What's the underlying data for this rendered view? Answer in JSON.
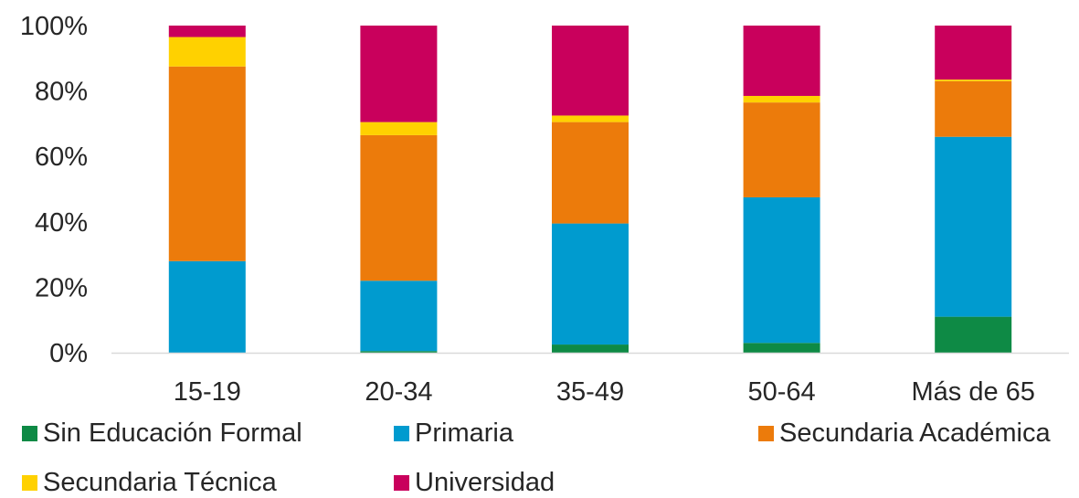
{
  "chart_data": {
    "type": "bar",
    "stacked": true,
    "percent": true,
    "categories": [
      "15-19",
      "20-34",
      "35-49",
      "50-64",
      "Más de 65"
    ],
    "y_ticks": [
      "0%",
      "20%",
      "40%",
      "60%",
      "80%",
      "100%"
    ],
    "ylim": [
      0,
      100
    ],
    "grid": false,
    "legend_position": "bottom",
    "series": [
      {
        "name": "Sin Educación Formal",
        "color": "#0E8A45",
        "values": [
          0,
          0.5,
          2.5,
          3,
          11
        ]
      },
      {
        "name": "Primaria",
        "color": "#009BCF",
        "values": [
          28,
          21.5,
          37,
          44.5,
          55
        ]
      },
      {
        "name": "Secundaria Académica",
        "color": "#EC7B0B",
        "values": [
          59.5,
          44.5,
          31,
          29,
          17
        ]
      },
      {
        "name": "Secundaria Técnica",
        "color": "#FFD100",
        "values": [
          9,
          4,
          2,
          2,
          0.5
        ]
      },
      {
        "name": "Universidad",
        "color": "#C9005C",
        "values": [
          3.5,
          29.5,
          27.5,
          21.5,
          16.5
        ]
      }
    ]
  }
}
